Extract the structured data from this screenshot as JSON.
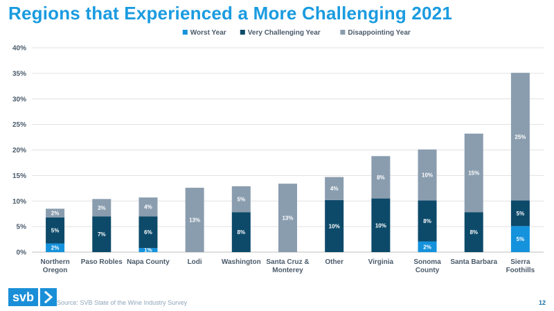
{
  "title": "Regions that Experienced a More Challenging 2021",
  "logo": "svb",
  "source": "Source: SVB State of the Wine Industry Survey",
  "page_number": "12",
  "colors": {
    "worst": "#1592dc",
    "very": "#0d4a6a",
    "disappointing": "#8a9daf",
    "axis_text": "#4a5a6a",
    "grid": "#e0e0e0"
  },
  "chart_data": {
    "type": "bar",
    "stacked": true,
    "ylim": [
      0,
      40
    ],
    "yticks": [
      "0%",
      "5%",
      "10%",
      "15%",
      "20%",
      "25%",
      "30%",
      "35%",
      "40%"
    ],
    "ytick_values": [
      0,
      5,
      10,
      15,
      20,
      25,
      30,
      35,
      40
    ],
    "grid": true,
    "legend_position": "top-center",
    "categories": [
      [
        "Northern",
        "Oregon"
      ],
      [
        "Paso Robles"
      ],
      [
        "Napa County"
      ],
      [
        "Lodi"
      ],
      [
        "Washington"
      ],
      [
        "Santa Cruz &",
        "Monterey"
      ],
      [
        "Other"
      ],
      [
        "Virginia"
      ],
      [
        "Sonoma",
        "County"
      ],
      [
        "Santa Barbara"
      ],
      [
        "Sierra",
        "Foothills"
      ]
    ],
    "series": [
      {
        "name": "Worst Year",
        "key": "worst",
        "values": [
          1.7,
          0,
          0.8,
          0,
          0,
          0,
          0,
          0,
          2.1,
          0,
          5.1
        ],
        "labels": [
          "2%",
          "",
          "1%",
          "",
          "",
          "",
          "",
          "",
          "2%",
          "",
          "5%"
        ]
      },
      {
        "name": "Very Challenging Year",
        "key": "very",
        "values": [
          5.1,
          7.0,
          6.2,
          0,
          7.8,
          0,
          10.2,
          10.5,
          8.0,
          7.8,
          5.0
        ],
        "labels": [
          "5%",
          "7%",
          "6%",
          "",
          "8%",
          "",
          "10%",
          "10%",
          "8%",
          "8%",
          "5%"
        ]
      },
      {
        "name": "Disappointing Year",
        "key": "disappointing",
        "values": [
          1.7,
          3.4,
          3.7,
          12.6,
          5.1,
          13.4,
          4.5,
          8.3,
          10.0,
          15.4,
          25.0
        ],
        "labels": [
          "2%",
          "3%",
          "4%",
          "13%",
          "5%",
          "13%",
          "4%",
          "8%",
          "10%",
          "15%",
          "25%"
        ]
      }
    ]
  }
}
